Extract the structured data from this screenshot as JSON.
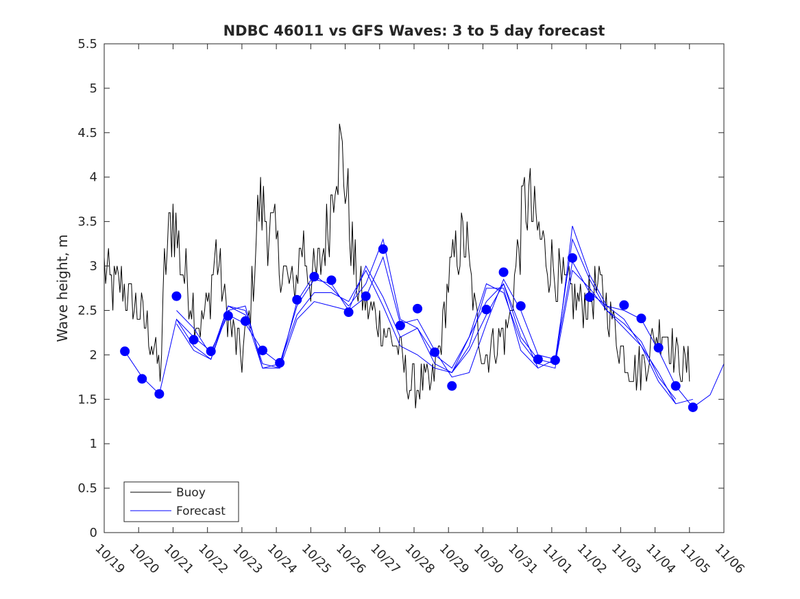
{
  "chart_data": {
    "type": "line",
    "title": "NDBC 46011 vs GFS Waves: 3 to 5 day forecast",
    "xlabel": "",
    "ylabel": "Wave height, m",
    "xlim": [
      0,
      18
    ],
    "ylim": [
      0,
      5.5
    ],
    "grid": false,
    "legend_position": "bottom-left",
    "x_ticks": [
      "10/19",
      "10/20",
      "10/21",
      "10/22",
      "10/23",
      "10/24",
      "10/25",
      "10/26",
      "10/27",
      "10/28",
      "10/29",
      "10/30",
      "10/31",
      "11/01",
      "11/02",
      "11/03",
      "11/04",
      "11/05",
      "11/06"
    ],
    "y_ticks": [
      "0",
      "0.5",
      "1",
      "1.5",
      "2",
      "2.5",
      "3",
      "3.5",
      "4",
      "4.5",
      "5",
      "5.5"
    ],
    "legend": [
      {
        "name": "Buoy",
        "color": "#000000"
      },
      {
        "name": "Forecast",
        "color": "#0000ff"
      }
    ],
    "buoy": {
      "name": "Buoy",
      "color": "#000000",
      "x": [
        0,
        0.25,
        0.5,
        0.75,
        1.0,
        1.25,
        1.5,
        1.65,
        1.75,
        2.0,
        2.25,
        2.5,
        2.75,
        3.0,
        3.25,
        3.5,
        3.75,
        4.0,
        4.25,
        4.5,
        4.75,
        5.0,
        5.25,
        5.5,
        5.75,
        6.0,
        6.25,
        6.5,
        6.75,
        7.0,
        7.25,
        7.5,
        7.75,
        8.0,
        8.25,
        8.5,
        8.75,
        9.0,
        9.25,
        9.5,
        9.75,
        10.0,
        10.25,
        10.5,
        10.75,
        11.0,
        11.25,
        11.5,
        11.75,
        12.0,
        12.25,
        12.5,
        12.75,
        13.0,
        13.25,
        13.5,
        13.75,
        14.0,
        14.25,
        14.5,
        14.75,
        15.0,
        15.25,
        15.5,
        15.75,
        16.0,
        16.25,
        16.5,
        16.75,
        17.0
      ],
      "y": [
        3.0,
        2.7,
        2.8,
        2.6,
        2.5,
        2.3,
        2.0,
        1.8,
        3.0,
        3.6,
        3.0,
        2.7,
        2.3,
        2.5,
        3.2,
        2.6,
        2.2,
        2.0,
        2.5,
        3.7,
        3.5,
        3.2,
        2.9,
        2.7,
        3.3,
        2.8,
        3.0,
        3.4,
        4.4,
        4.0,
        3.0,
        2.6,
        2.5,
        2.4,
        2.2,
        2.1,
        1.8,
        1.6,
        1.7,
        1.6,
        2.1,
        2.8,
        3.2,
        3.3,
        2.5,
        2.0,
        2.1,
        2.2,
        2.3,
        3.1,
        3.8,
        3.5,
        3.2,
        3.0,
        2.8,
        2.7,
        2.6,
        2.6,
        2.7,
        2.7,
        2.4,
        2.1,
        1.9,
        1.8,
        2.0,
        2.2,
        2.3,
        2.1,
        1.9,
        1.8
      ],
      "noise": 0.12
    },
    "forecast": {
      "name": "Forecast",
      "color": "#0000ff",
      "marker_x": [
        0.6,
        1.1,
        1.6,
        2.1,
        2.6,
        3.1,
        3.6,
        4.1,
        4.6,
        5.1,
        5.6,
        6.1,
        6.6,
        7.1,
        7.6,
        8.1,
        8.6,
        9.1,
        9.6,
        10.1,
        11.1,
        11.6,
        12.1,
        12.6,
        13.1,
        13.6,
        14.1,
        15.1,
        15.6,
        16.1,
        16.6,
        17.1,
        17.6
      ],
      "marker_y": [
        2.04,
        1.73,
        1.56,
        2.66,
        2.17,
        2.04,
        2.44,
        2.38,
        2.05,
        1.91,
        2.62,
        2.88,
        2.84,
        2.48,
        2.66,
        3.19,
        2.33,
        2.52,
        2.03,
        1.65,
        2.51,
        2.93,
        2.55,
        1.95,
        1.94,
        3.09,
        2.65,
        2.56,
        2.41,
        2.08,
        1.65,
        1.41,
        null
      ],
      "runs": [
        {
          "x": [
            0.6,
            1.1,
            1.6,
            2.1,
            2.6,
            3.1,
            3.6,
            4.1,
            4.6,
            5.1,
            5.6,
            6.1,
            6.6,
            7.1,
            7.6,
            8.1,
            8.6,
            9.1,
            9.6,
            10.1,
            10.6,
            11.1,
            11.6,
            12.1,
            12.6,
            13.1,
            13.6,
            14.1,
            14.6,
            15.1,
            15.6,
            16.1,
            16.6,
            17.1,
            17.6,
            18.0
          ],
          "y": [
            2.04,
            1.75,
            1.56,
            2.4,
            2.2,
            2.04,
            2.45,
            2.35,
            2.05,
            1.9,
            2.55,
            2.85,
            2.8,
            2.5,
            2.65,
            3.1,
            2.35,
            2.4,
            2.05,
            1.75,
            1.8,
            2.35,
            2.85,
            2.5,
            2.0,
            1.95,
            3.05,
            2.7,
            2.55,
            2.5,
            2.4,
            2.05,
            1.65,
            1.41,
            1.55,
            1.9
          ]
        },
        {
          "x": [
            2.1,
            2.6,
            3.1,
            3.6,
            4.1,
            4.6,
            5.1,
            5.6,
            6.1,
            6.6,
            7.1,
            7.6,
            8.1,
            8.6,
            9.1,
            9.6,
            10.1,
            10.6,
            11.1,
            11.6,
            12.1,
            12.6,
            13.1,
            13.6,
            14.1,
            14.6,
            15.1,
            15.6,
            16.1,
            16.6,
            17.1
          ],
          "y": [
            2.5,
            2.3,
            2.0,
            2.55,
            2.5,
            1.9,
            1.85,
            2.6,
            2.9,
            2.75,
            2.55,
            2.8,
            3.3,
            2.4,
            2.3,
            1.9,
            1.8,
            2.2,
            2.8,
            2.7,
            2.15,
            1.9,
            1.85,
            3.45,
            2.9,
            2.55,
            2.4,
            2.1,
            1.7,
            1.45,
            1.5
          ]
        },
        {
          "x": [
            2.1,
            2.6,
            3.1,
            3.6,
            4.1,
            4.6,
            5.1,
            5.6,
            6.1,
            6.6,
            7.1,
            7.6,
            8.1,
            8.6,
            9.1,
            9.6,
            10.1,
            10.6,
            11.1,
            11.6,
            12.1,
            12.6,
            13.1,
            13.6,
            14.1,
            14.6,
            15.1,
            15.6,
            16.1,
            16.6
          ],
          "y": [
            2.35,
            2.05,
            1.95,
            2.55,
            2.45,
            1.85,
            1.9,
            2.45,
            2.7,
            2.7,
            2.6,
            2.95,
            2.55,
            2.1,
            2.0,
            1.85,
            1.8,
            2.1,
            2.75,
            2.75,
            2.05,
            1.85,
            1.95,
            3.3,
            2.85,
            2.5,
            2.35,
            2.15,
            1.75,
            1.5
          ]
        },
        {
          "x": [
            2.1,
            2.6,
            3.1,
            3.6,
            4.1,
            4.6,
            5.1,
            5.6,
            6.1,
            6.6,
            7.1,
            7.6,
            8.1,
            8.6,
            9.1,
            9.6,
            10.1,
            10.6,
            11.1,
            11.6,
            12.1,
            12.6,
            13.1,
            13.6,
            14.1,
            14.6,
            15.1,
            15.6,
            16.1,
            16.6
          ],
          "y": [
            2.4,
            2.1,
            1.95,
            2.5,
            2.55,
            1.85,
            1.85,
            2.4,
            2.6,
            2.55,
            2.5,
            3.0,
            2.65,
            2.2,
            2.3,
            2.0,
            1.85,
            2.2,
            2.6,
            2.8,
            2.2,
            1.95,
            1.9,
            2.95,
            2.75,
            2.5,
            2.3,
            2.1,
            1.8,
            1.45
          ]
        },
        {
          "x": [
            10.1,
            10.6,
            11.1,
            11.6,
            12.1,
            12.6
          ],
          "y": [
            1.8,
            2.05,
            2.45,
            2.8,
            2.3,
            1.85
          ]
        }
      ]
    }
  }
}
